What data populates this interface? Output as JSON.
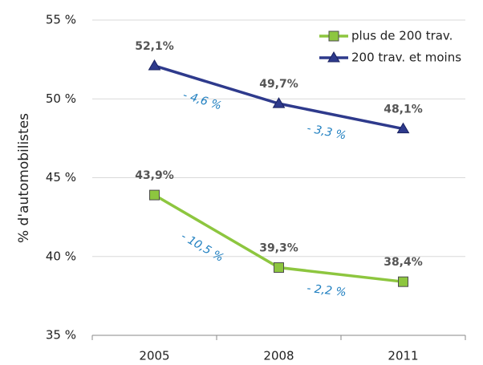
{
  "chart_data": {
    "type": "line",
    "y_label": "% d'automobilistes",
    "categories": [
      "2005",
      "2008",
      "2011"
    ],
    "ylim": [
      35,
      55
    ],
    "yticks": [
      {
        "value": 35,
        "label": "35 %"
      },
      {
        "value": 40,
        "label": "40 %"
      },
      {
        "value": 45,
        "label": "45 %"
      },
      {
        "value": 50,
        "label": "50 %"
      },
      {
        "value": 55,
        "label": "55 %"
      }
    ],
    "grid": true,
    "legend": "top-right",
    "series": [
      {
        "name": "plus de 200 trav.",
        "color": "#8dc63f",
        "marker": "square",
        "values": [
          43.9,
          39.3,
          38.4
        ],
        "value_labels": [
          "43,9%",
          "39,3%",
          "38,4%"
        ],
        "change_labels": [
          "- 10,5 %",
          "- 2,2 %"
        ]
      },
      {
        "name": "200 trav. et moins",
        "color": "#2e3a8c",
        "marker": "triangle",
        "values": [
          52.1,
          49.7,
          48.1
        ],
        "value_labels": [
          "52,1%",
          "49,7%",
          "48,1%"
        ],
        "change_labels": [
          "- 4,6 %",
          "- 3,3 %"
        ]
      }
    ]
  }
}
